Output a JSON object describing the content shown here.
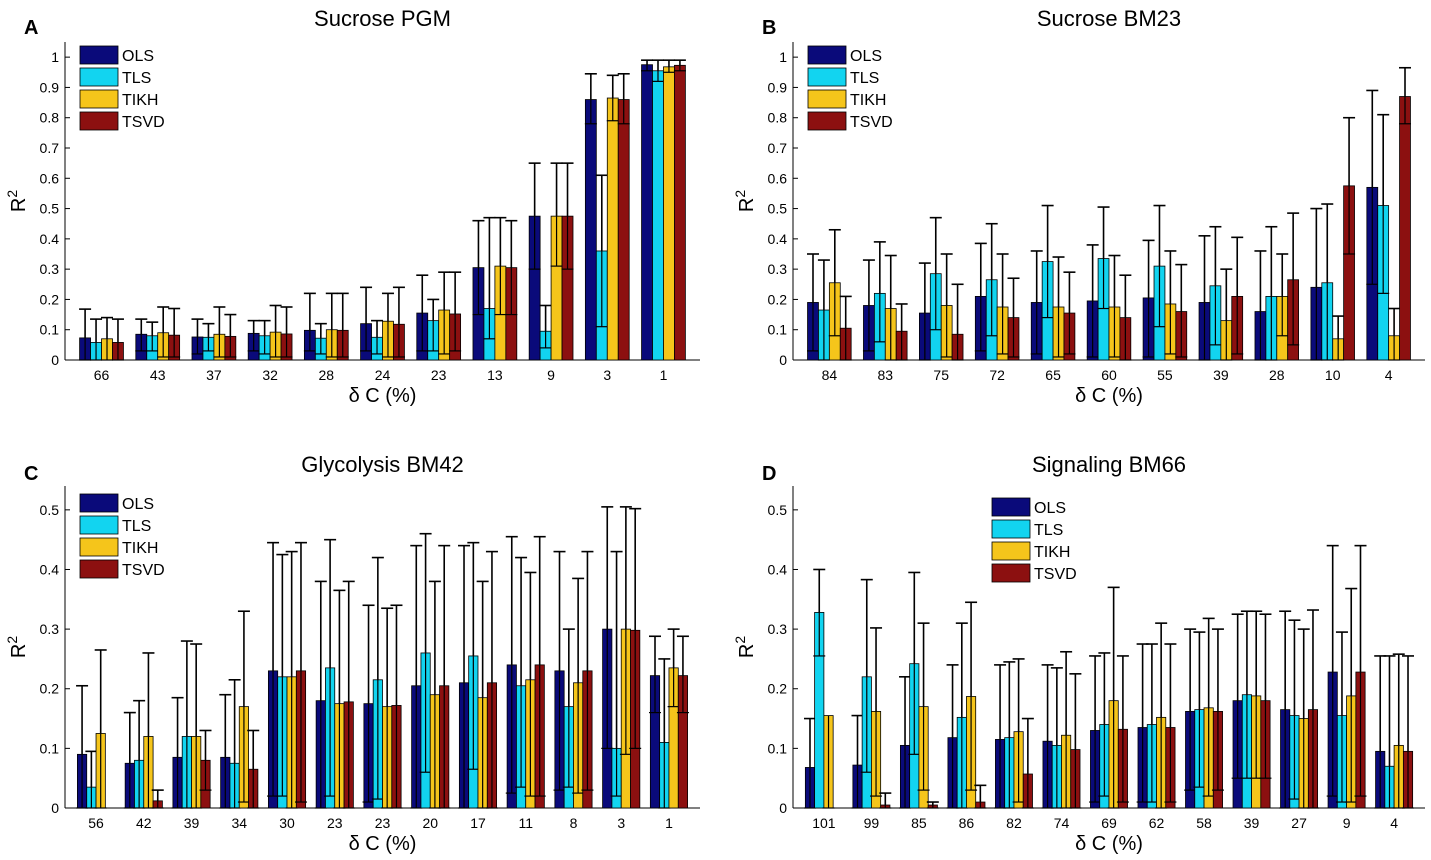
{
  "chart_data": [
    {
      "panel": "A",
      "type": "bar",
      "title": "Sucrose PGM",
      "xlabel": "δ C (%)",
      "ylabel": "R²",
      "ylim": [
        0,
        1.05
      ],
      "yticks": [
        0,
        0.1,
        0.2,
        0.3,
        0.4,
        0.5,
        0.6,
        0.7,
        0.8,
        0.9,
        1
      ],
      "legend_position": "top-left",
      "categories": [
        "66",
        "43",
        "37",
        "32",
        "28",
        "24",
        "23",
        "13",
        "9",
        "3",
        "1"
      ],
      "series": [
        {
          "name": "OLS",
          "color": "#0a0a7a",
          "values": [
            0.073,
            0.085,
            0.076,
            0.088,
            0.098,
            0.12,
            0.155,
            0.305,
            0.475,
            0.86,
            0.975
          ],
          "upper": [
            0.168,
            0.135,
            0.135,
            0.13,
            0.22,
            0.24,
            0.28,
            0.46,
            0.65,
            0.945,
            0.99
          ],
          "lower": [
            0.0,
            0.03,
            0.02,
            0.03,
            0.03,
            0.03,
            0.03,
            0.15,
            0.3,
            0.78,
            0.955
          ]
        },
        {
          "name": "TLS",
          "color": "#12d4f0",
          "values": [
            0.058,
            0.08,
            0.075,
            0.08,
            0.072,
            0.075,
            0.13,
            0.17,
            0.095,
            0.36,
            0.955
          ],
          "upper": [
            0.135,
            0.125,
            0.12,
            0.13,
            0.12,
            0.13,
            0.2,
            0.47,
            0.18,
            0.61,
            0.99
          ],
          "lower": [
            0.0,
            0.03,
            0.03,
            0.02,
            0.02,
            0.02,
            0.03,
            0.07,
            0.04,
            0.11,
            0.92
          ]
        },
        {
          "name": "TIKH",
          "color": "#f5c51b",
          "values": [
            0.07,
            0.09,
            0.085,
            0.092,
            0.1,
            0.128,
            0.165,
            0.31,
            0.475,
            0.865,
            0.968
          ],
          "upper": [
            0.14,
            0.175,
            0.175,
            0.18,
            0.22,
            0.22,
            0.29,
            0.47,
            0.65,
            0.94,
            0.99
          ],
          "lower": [
            0.0,
            0.01,
            0.01,
            0.01,
            0.01,
            0.01,
            0.02,
            0.15,
            0.31,
            0.79,
            0.95
          ]
        },
        {
          "name": "TSVD",
          "color": "#8c1010",
          "values": [
            0.058,
            0.082,
            0.078,
            0.086,
            0.098,
            0.118,
            0.152,
            0.305,
            0.475,
            0.86,
            0.973
          ],
          "upper": [
            0.135,
            0.17,
            0.15,
            0.175,
            0.22,
            0.24,
            0.29,
            0.46,
            0.65,
            0.945,
            0.99
          ],
          "lower": [
            0.0,
            0.01,
            0.01,
            0.01,
            0.01,
            0.01,
            0.03,
            0.15,
            0.3,
            0.78,
            0.955
          ]
        }
      ]
    },
    {
      "panel": "B",
      "type": "bar",
      "title": "Sucrose BM23",
      "xlabel": "δ C (%)",
      "ylabel": "R²",
      "ylim": [
        0,
        1.05
      ],
      "yticks": [
        0,
        0.1,
        0.2,
        0.3,
        0.4,
        0.5,
        0.6,
        0.7,
        0.8,
        0.9,
        1
      ],
      "legend_position": "top-left",
      "categories": [
        "84",
        "83",
        "75",
        "72",
        "65",
        "60",
        "55",
        "39",
        "28",
        "10",
        "4"
      ],
      "series": [
        {
          "name": "OLS",
          "color": "#0a0a7a",
          "values": [
            0.19,
            0.18,
            0.155,
            0.21,
            0.19,
            0.195,
            0.205,
            0.19,
            0.16,
            0.24,
            0.57
          ],
          "upper": [
            0.35,
            0.33,
            0.32,
            0.385,
            0.36,
            0.38,
            0.395,
            0.41,
            0.36,
            0.5,
            0.89
          ],
          "lower": [
            0.03,
            0.03,
            0.0,
            0.03,
            0.02,
            0.01,
            0.01,
            0.0,
            0.0,
            0.0,
            0.25
          ]
        },
        {
          "name": "TLS",
          "color": "#12d4f0",
          "values": [
            0.165,
            0.22,
            0.285,
            0.265,
            0.325,
            0.335,
            0.31,
            0.245,
            0.21,
            0.255,
            0.51
          ],
          "upper": [
            0.33,
            0.39,
            0.47,
            0.45,
            0.51,
            0.505,
            0.51,
            0.44,
            0.44,
            0.515,
            0.81
          ],
          "lower": [
            0.0,
            0.06,
            0.1,
            0.08,
            0.14,
            0.17,
            0.11,
            0.05,
            0.0,
            0.0,
            0.22
          ]
        },
        {
          "name": "TIKH",
          "color": "#f5c51b",
          "values": [
            0.255,
            0.17,
            0.18,
            0.175,
            0.175,
            0.175,
            0.185,
            0.13,
            0.21,
            0.07,
            0.08
          ],
          "upper": [
            0.43,
            0.345,
            0.35,
            0.35,
            0.34,
            0.345,
            0.36,
            0.3,
            0.35,
            0.145,
            0.17
          ],
          "lower": [
            0.08,
            0.0,
            0.01,
            0.02,
            0.01,
            0.01,
            0.02,
            0.0,
            0.08,
            0.0,
            0.0
          ]
        },
        {
          "name": "TSVD",
          "color": "#8c1010",
          "values": [
            0.105,
            0.095,
            0.085,
            0.14,
            0.155,
            0.14,
            0.16,
            0.21,
            0.265,
            0.575,
            0.87
          ],
          "upper": [
            0.21,
            0.185,
            0.25,
            0.27,
            0.29,
            0.28,
            0.315,
            0.405,
            0.485,
            0.8,
            0.965
          ],
          "lower": [
            0.0,
            0.0,
            0.0,
            0.01,
            0.02,
            0.0,
            0.01,
            0.02,
            0.05,
            0.35,
            0.78
          ]
        }
      ]
    },
    {
      "panel": "C",
      "type": "bar",
      "title": "Glycolysis BM42",
      "xlabel": "δ C (%)",
      "ylabel": "R²",
      "ylim": [
        0,
        0.54
      ],
      "yticks": [
        0,
        0.1,
        0.2,
        0.3,
        0.4,
        0.5
      ],
      "legend_position": "top-left",
      "categories": [
        "56",
        "42",
        "39",
        "34",
        "30",
        "23",
        "23",
        "20",
        "17",
        "11",
        "8",
        "3",
        "1"
      ],
      "series": [
        {
          "name": "OLS",
          "color": "#0a0a7a",
          "values": [
            0.09,
            0.075,
            0.085,
            0.085,
            0.23,
            0.18,
            0.175,
            0.205,
            0.21,
            0.24,
            0.23,
            0.3,
            0.222
          ],
          "upper": [
            0.205,
            0.16,
            0.185,
            0.19,
            0.445,
            0.38,
            0.34,
            0.44,
            0.44,
            0.455,
            0.43,
            0.505,
            0.288
          ],
          "lower": [
            0.0,
            0.0,
            0.0,
            0.0,
            0.02,
            0.0,
            0.01,
            0.0,
            0.0,
            0.025,
            0.03,
            0.1,
            0.16
          ]
        },
        {
          "name": "TLS",
          "color": "#12d4f0",
          "values": [
            0.035,
            0.08,
            0.12,
            0.075,
            0.22,
            0.235,
            0.215,
            0.26,
            0.255,
            0.205,
            0.17,
            0.1,
            0.11
          ],
          "upper": [
            0.095,
            0.18,
            0.28,
            0.215,
            0.425,
            0.45,
            0.42,
            0.46,
            0.445,
            0.42,
            0.3,
            0.43,
            0.25
          ],
          "lower": [
            0.0,
            0.0,
            0.0,
            0.0,
            0.02,
            0.02,
            0.015,
            0.06,
            0.065,
            0.035,
            0.035,
            0.02,
            0.0
          ]
        },
        {
          "name": "TIKH",
          "color": "#f5c51b",
          "values": [
            0.125,
            0.12,
            0.12,
            0.17,
            0.22,
            0.175,
            0.17,
            0.19,
            0.185,
            0.215,
            0.21,
            0.3,
            0.235
          ],
          "upper": [
            0.265,
            0.26,
            0.275,
            0.33,
            0.43,
            0.365,
            0.335,
            0.38,
            0.38,
            0.395,
            0.385,
            0.505,
            0.3
          ],
          "lower": [
            0.0,
            0.0,
            0.0,
            0.01,
            0.0,
            0.0,
            0.0,
            0.0,
            0.0,
            0.02,
            0.025,
            0.09,
            0.17
          ]
        },
        {
          "name": "TSVD",
          "color": "#8c1010",
          "values": [
            0.0,
            0.012,
            0.08,
            0.065,
            0.23,
            0.178,
            0.172,
            0.205,
            0.21,
            0.24,
            0.23,
            0.298,
            0.222
          ],
          "upper": [
            0.0,
            0.03,
            0.13,
            0.13,
            0.445,
            0.38,
            0.34,
            0.44,
            0.43,
            0.455,
            0.43,
            0.502,
            0.288
          ],
          "lower": [
            0.0,
            0.0,
            0.03,
            0.0,
            0.01,
            0.0,
            0.0,
            0.0,
            0.0,
            0.02,
            0.03,
            0.1,
            0.16
          ]
        }
      ]
    },
    {
      "panel": "D",
      "type": "bar",
      "title": "Signaling BM66",
      "xlabel": "δ C (%)",
      "ylabel": "R²",
      "ylim": [
        0,
        0.54
      ],
      "yticks": [
        0,
        0.1,
        0.2,
        0.3,
        0.4,
        0.5
      ],
      "legend_position": "top-center",
      "categories": [
        "101",
        "99",
        "85",
        "86",
        "82",
        "74",
        "69",
        "62",
        "58",
        "39",
        "27",
        "9",
        "4"
      ],
      "series": [
        {
          "name": "OLS",
          "color": "#0a0a7a",
          "values": [
            0.068,
            0.072,
            0.105,
            0.118,
            0.115,
            0.112,
            0.13,
            0.135,
            0.162,
            0.18,
            0.165,
            0.228,
            0.095
          ],
          "upper": [
            0.15,
            0.155,
            0.22,
            0.24,
            0.24,
            0.24,
            0.255,
            0.275,
            0.3,
            0.325,
            0.33,
            0.44,
            0.255
          ],
          "lower": [
            0.0,
            0.0,
            0.0,
            0.0,
            0.0,
            0.0,
            0.01,
            0.01,
            0.03,
            0.05,
            0.0,
            0.02,
            0.0
          ]
        },
        {
          "name": "TLS",
          "color": "#12d4f0",
          "values": [
            0.328,
            0.22,
            0.242,
            0.152,
            0.118,
            0.105,
            0.14,
            0.14,
            0.165,
            0.19,
            0.155,
            0.155,
            0.07
          ],
          "upper": [
            0.4,
            0.383,
            0.395,
            0.31,
            0.245,
            0.235,
            0.26,
            0.275,
            0.295,
            0.33,
            0.315,
            0.295,
            0.255
          ],
          "lower": [
            0.255,
            0.06,
            0.09,
            0.0,
            0.0,
            0.0,
            0.02,
            0.01,
            0.035,
            0.05,
            0.015,
            0.01,
            0.0
          ]
        },
        {
          "name": "TIKH",
          "color": "#f5c51b",
          "values": [
            0.155,
            0.162,
            0.17,
            0.187,
            0.128,
            0.122,
            0.18,
            0.152,
            0.168,
            0.188,
            0.15,
            0.188,
            0.105
          ],
          "upper": [
            0.005,
            0.302,
            0.31,
            0.345,
            0.25,
            0.262,
            0.37,
            0.31,
            0.318,
            0.33,
            0.3,
            0.368,
            0.258
          ],
          "lower": [
            0.0,
            0.02,
            0.03,
            0.03,
            0.01,
            0.0,
            0.0,
            0.0,
            0.02,
            0.05,
            0.0,
            0.01,
            0.0
          ]
        },
        {
          "name": "TSVD",
          "color": "#8c1010",
          "values": [
            0.0,
            0.005,
            0.005,
            0.01,
            0.057,
            0.098,
            0.132,
            0.135,
            0.162,
            0.18,
            0.165,
            0.228,
            0.095
          ],
          "upper": [
            0.0,
            0.025,
            0.01,
            0.038,
            0.15,
            0.225,
            0.255,
            0.275,
            0.3,
            0.325,
            0.332,
            0.44,
            0.255
          ],
          "lower": [
            0.0,
            0.0,
            0.0,
            0.0,
            0.0,
            0.0,
            0.01,
            0.01,
            0.03,
            0.05,
            0.0,
            0.02,
            0.0
          ]
        }
      ]
    }
  ]
}
